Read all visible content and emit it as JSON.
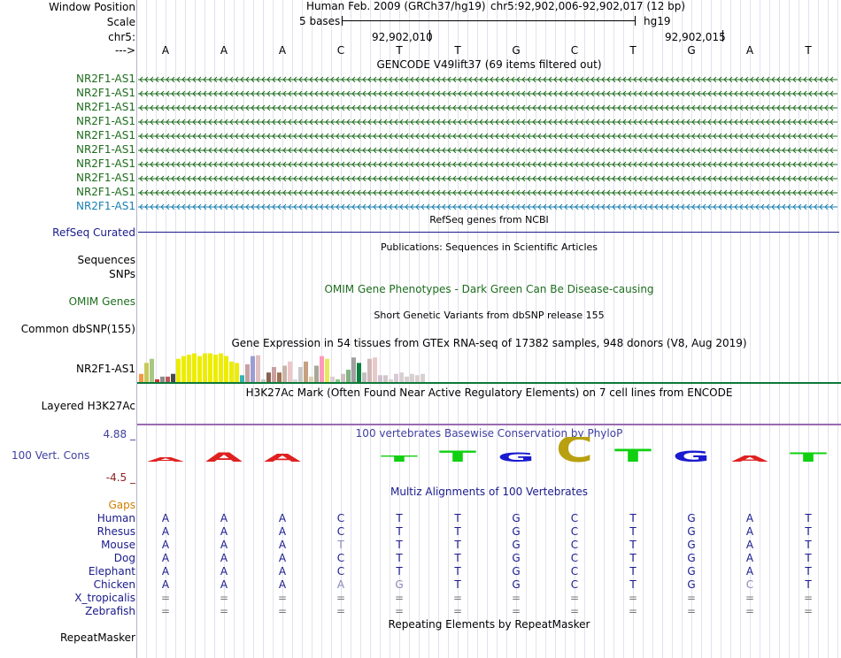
{
  "header": {
    "window_position_label": "Window Position",
    "scale_label": "Scale",
    "chrom_label": "chr5:",
    "strand_label": "--->",
    "assembly_title": "Human Feb. 2009 (GRCh37/hg19)",
    "coords": "chr5:92,902,006-92,902,017 (12 bp)",
    "scale_text": "5 bases",
    "db": "hg19",
    "pos1": "92,902,010",
    "pos2": "92,902,015"
  },
  "bases": [
    "A",
    "A",
    "A",
    "C",
    "T",
    "T",
    "G",
    "C",
    "T",
    "G",
    "A",
    "T"
  ],
  "gencode": {
    "title": "GENCODE V49lift37 (69 items filtered out)",
    "transcripts": [
      "NR2F1-AS1",
      "NR2F1-AS1",
      "NR2F1-AS1",
      "NR2F1-AS1",
      "NR2F1-AS1",
      "NR2F1-AS1",
      "NR2F1-AS1",
      "NR2F1-AS1",
      "NR2F1-AS1",
      "NR2F1-AS1"
    ],
    "color_dark": "#1e6e1e",
    "color_blue": "#1a7fb0"
  },
  "refseq": {
    "title": "RefSeq genes from NCBI",
    "label": "RefSeq Curated",
    "color": "#1a1a8c"
  },
  "publications": {
    "title": "Publications: Sequences in Scientific Articles",
    "label1": "Sequences",
    "label2": "SNPs"
  },
  "omim": {
    "title": "OMIM Gene Phenotypes - Dark Green Can Be Disease-causing",
    "label": "OMIM Genes",
    "color": "#1e6e1e"
  },
  "dbsnp": {
    "title": "Short Genetic Variants from dbSNP release 155",
    "label": "Common dbSNP(155)"
  },
  "gtex": {
    "title": "Gene Expression in 54 tissues from GTEx RNA-seq of 17382 samples, 948 donors (V8, Aug 2019)",
    "label": "NR2F1-AS1",
    "values": [
      0.3,
      0.7,
      0.85,
      0.1,
      0.2,
      0.2,
      0.3,
      0.85,
      0.95,
      1.0,
      1.05,
      0.95,
      1.05,
      1.05,
      1.0,
      1.05,
      0.95,
      0.75,
      0.7,
      0.25,
      0.65,
      0.95,
      0.98,
      0.1,
      0.35,
      0.55,
      0.35,
      0.6,
      0.75,
      0.1,
      0.55,
      0.75,
      0.2,
      0.6,
      0.95,
      0.85,
      0.2,
      0.1,
      0.3,
      0.45,
      0.9,
      0.7,
      0.35,
      0.85,
      0.9,
      0.25,
      0.25,
      0.1,
      0.3,
      0.35,
      0.2,
      0.3,
      0.25,
      0.3
    ],
    "colors": [
      "#f59a40",
      "#c8c85a",
      "#a8c880",
      "#cc3030",
      "#8c8c8c",
      "#ba5a5a",
      "#4a4a4a",
      "#eded00",
      "#eded00",
      "#eded00",
      "#eded00",
      "#eded00",
      "#eded00",
      "#eded00",
      "#eded00",
      "#eded00",
      "#eded00",
      "#eded00",
      "#eded00",
      "#33b5b5",
      "#c8a0a0",
      "#9c9cd4",
      "#e0c0c0",
      "#c8c8c8",
      "#8c6050",
      "#c8a0a0",
      "#a07050",
      "#c8b4a8",
      "#ecc8c8",
      "#d8d8d8",
      "#c8c8c8",
      "#c8a080",
      "#ddd0b0",
      "#a8a898",
      "#ff99bb",
      "#e8e85a",
      "#ddd0d0",
      "#8cc88c",
      "#d0c0c0",
      "#80b480",
      "#a0a0a0",
      "#0c8040",
      "#c0c0c0",
      "#d0b8b8",
      "#e8c8c8",
      "#d0c0d0",
      "#d0c8c8",
      "#d8d0c8",
      "#d8c8d8",
      "#d8d0d0",
      "#d8d0d0",
      "#d8d0d0",
      "#d8d0d0",
      "#d8d0d0"
    ]
  },
  "h3k27ac": {
    "title": "H3K27Ac Mark (Often Found Near Active Regulatory Elements) on 7 cell lines from ENCODE",
    "label": "Layered H3K27Ac"
  },
  "phylop": {
    "title": "100 vertebrates Basewise Conservation by PhyloP",
    "label": "100 Vert. Cons",
    "max_label": "4.88 _",
    "min_label": "-4.5 _",
    "scores": [
      0.15,
      0.3,
      0.25,
      0,
      0.2,
      0.35,
      0.3,
      0.85,
      0.4,
      0.35,
      0.2,
      0.3
    ]
  },
  "multiz": {
    "title": "Multiz Alignments of 100 Vertebrates",
    "gaps_label": "Gaps",
    "species": [
      {
        "name": "Human",
        "bases": [
          "A",
          "A",
          "A",
          "C",
          "T",
          "T",
          "G",
          "C",
          "T",
          "G",
          "A",
          "T"
        ]
      },
      {
        "name": "Rhesus",
        "bases": [
          "A",
          "A",
          "A",
          "C",
          "T",
          "T",
          "G",
          "C",
          "T",
          "G",
          "A",
          "T"
        ]
      },
      {
        "name": "Mouse",
        "bases": [
          "A",
          "A",
          "A",
          "T",
          "T",
          "T",
          "G",
          "C",
          "T",
          "G",
          "A",
          "T"
        ]
      },
      {
        "name": "Dog",
        "bases": [
          "A",
          "A",
          "A",
          "C",
          "T",
          "T",
          "G",
          "C",
          "T",
          "G",
          "A",
          "T"
        ]
      },
      {
        "name": "Elephant",
        "bases": [
          "A",
          "A",
          "A",
          "C",
          "T",
          "T",
          "G",
          "C",
          "T",
          "G",
          "A",
          "T"
        ]
      },
      {
        "name": "Chicken",
        "bases": [
          "A",
          "A",
          "A",
          "A",
          "G",
          "T",
          "G",
          "C",
          "T",
          "G",
          "C",
          "T"
        ]
      },
      {
        "name": "X_tropicalis",
        "bases": [
          "=",
          "=",
          "=",
          "=",
          "=",
          "=",
          "=",
          "=",
          "=",
          "=",
          "=",
          "="
        ]
      },
      {
        "name": "Zebrafish",
        "bases": [
          "=",
          "=",
          "=",
          "=",
          "=",
          "=",
          "=",
          "=",
          "=",
          "=",
          "=",
          "="
        ]
      }
    ],
    "mismatch": {
      "2": [
        3
      ],
      "5": [
        3,
        4,
        10
      ]
    }
  },
  "repeatmasker": {
    "title": "Repeating Elements by RepeatMasker",
    "label": "RepeatMasker"
  },
  "colors": {
    "species_label": "#1a1a8c",
    "gaps": "#d08000",
    "conservation_label": "#4040a0",
    "min_label": "#8c2020",
    "mismatch": "#8888bb",
    "gtex_baseline": "#0c7a3a",
    "h3k27ac_line": "#9a6ab0",
    "grid": "#c8c8e0"
  }
}
